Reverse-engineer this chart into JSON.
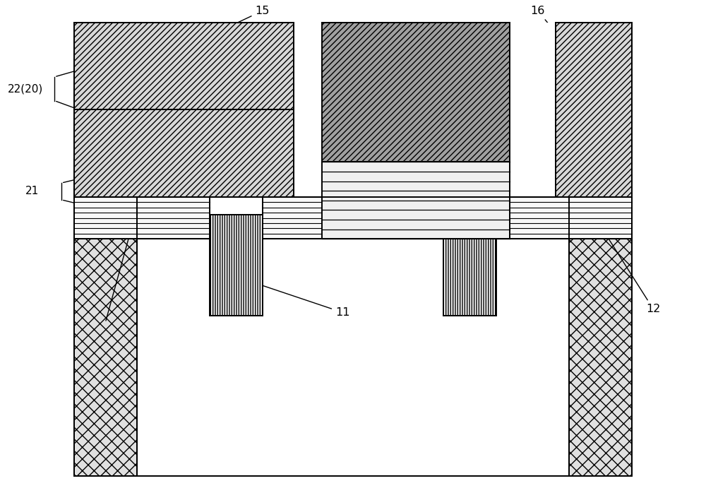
{
  "fig_width": 10.0,
  "fig_height": 7.08,
  "bg_color": "#ffffff",
  "lc": "#000000",
  "lw": 1.4
}
